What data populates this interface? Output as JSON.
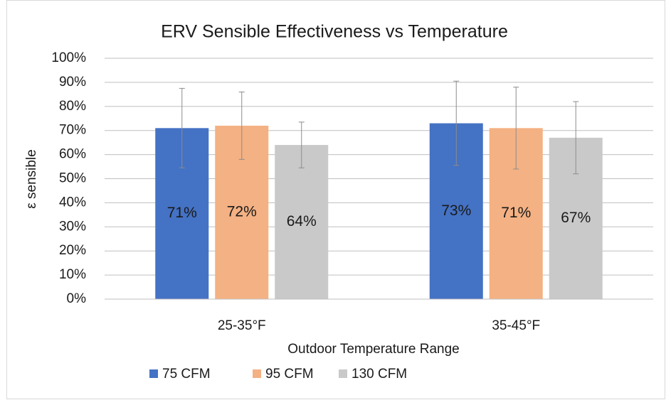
{
  "chart_data": {
    "type": "bar",
    "title": "ERV Sensible Effectiveness vs Temperature",
    "x_label": "Outdoor Temperature Range",
    "y_label": "ε sensible",
    "categories": [
      "25-35°F",
      "35-45°F"
    ],
    "series": [
      {
        "name": "75 CFM",
        "color": "#4472c4",
        "values": [
          71,
          73
        ],
        "value_labels": [
          "71%",
          "73%"
        ],
        "errors": [
          16.5,
          17.5
        ]
      },
      {
        "name": "95 CFM",
        "color": "#f4b183",
        "values": [
          72,
          71
        ],
        "value_labels": [
          "72%",
          "71%"
        ],
        "errors": [
          14,
          17
        ]
      },
      {
        "name": "130 CFM",
        "color": "#c9c9c9",
        "values": [
          64,
          67
        ],
        "value_labels": [
          "64%",
          "67%"
        ],
        "errors": [
          9.5,
          15
        ]
      }
    ],
    "ylim": [
      0,
      100
    ],
    "yticks": [
      {
        "value": 0,
        "label": "0%"
      },
      {
        "value": 10,
        "label": "10%"
      },
      {
        "value": 20,
        "label": "20%"
      },
      {
        "value": 30,
        "label": "30%"
      },
      {
        "value": 40,
        "label": "40%"
      },
      {
        "value": 50,
        "label": "50%"
      },
      {
        "value": 60,
        "label": "60%"
      },
      {
        "value": 70,
        "label": "70%"
      },
      {
        "value": 80,
        "label": "80%"
      },
      {
        "value": 90,
        "label": "90%"
      },
      {
        "value": 100,
        "label": "100%"
      }
    ],
    "grid": true,
    "legend": "bottom"
  }
}
